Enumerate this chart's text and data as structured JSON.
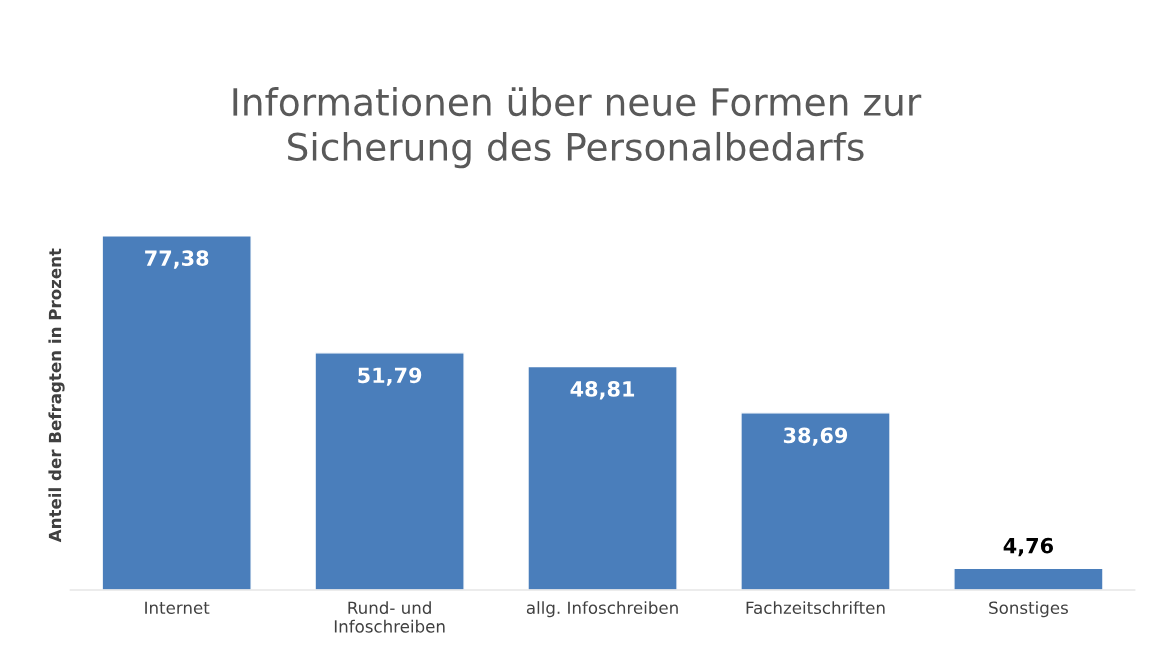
{
  "chart_data": {
    "type": "bar",
    "title": "Informationen über neue Formen zur\nSicherung des Personalbedarfs",
    "ylabel": "Anteil der Befragten in Prozent",
    "categories": [
      "Internet",
      "Rund- und\nInfoschreiben",
      "allg. Infoschreiben",
      "Fachzeitschriften",
      "Sonstiges"
    ],
    "values": [
      77.38,
      51.79,
      48.81,
      38.69,
      4.76
    ],
    "value_labels": [
      "77,38",
      "51,79",
      "48,81",
      "38,69",
      "4,76"
    ],
    "color": "#4a7ebb",
    "grid": false,
    "legend": false
  }
}
